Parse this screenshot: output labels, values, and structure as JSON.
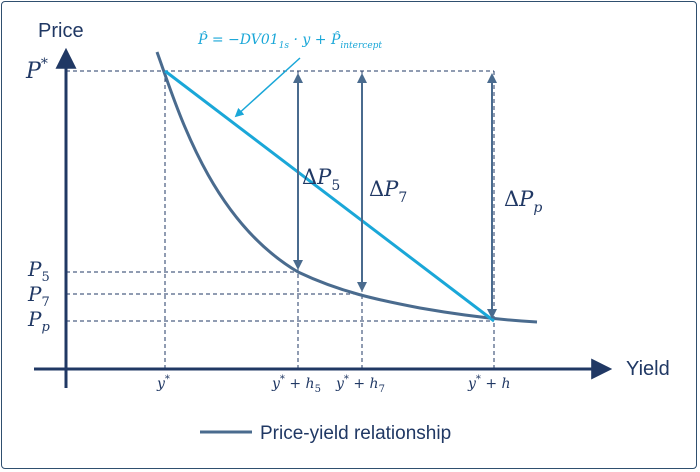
{
  "axes": {
    "y_title": "Price",
    "x_title": "Yield"
  },
  "price_labels": {
    "p_star": "P",
    "p_star_sup": "*",
    "p5": "P",
    "p5_sub": "5",
    "p7": "P",
    "p7_sub": "7",
    "pp": "P",
    "pp_sub": "p"
  },
  "yield_labels": {
    "y_star": "y",
    "y_star_sup": "*",
    "y_h5": "y",
    "y_h5_sup": "*",
    "y_h5_plus": " + h",
    "y_h5_sub": "5",
    "y_h7": "y",
    "y_h7_sup": "*",
    "y_h7_plus": " + h",
    "y_h7_sub": "7",
    "y_h": "y",
    "y_h_sup": "*",
    "y_h_plus": " + h"
  },
  "deltas": {
    "d5_delta": "Δ",
    "d5_p": "P",
    "d5_sub": "5",
    "d7_delta": "Δ",
    "d7_p": "P",
    "d7_sub": "7",
    "dp_delta": "Δ",
    "dp_p": "P",
    "dp_sub": "p"
  },
  "formula": {
    "lhs": "P̂",
    "eq": " = −DV01",
    "sub1": "1s",
    "mid": " · y + P̂",
    "sub2": "intercept"
  },
  "legend": {
    "label": "Price-yield relationship"
  },
  "colors": {
    "axis": "#203864",
    "curve": "#4a6b8e",
    "linear": "#1aa7d8",
    "arrow": "#4a6b8e"
  }
}
